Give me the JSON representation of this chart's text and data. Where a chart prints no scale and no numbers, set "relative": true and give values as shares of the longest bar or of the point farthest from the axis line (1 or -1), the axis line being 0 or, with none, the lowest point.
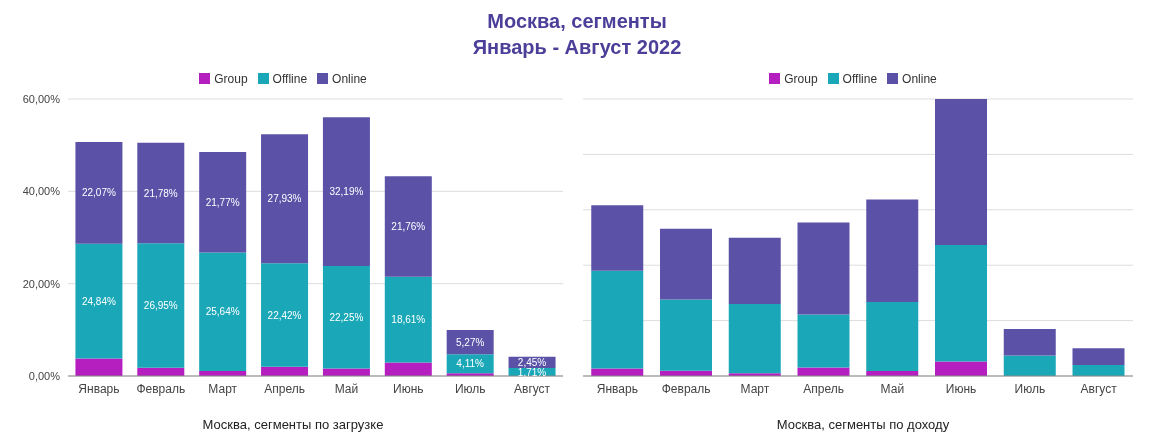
{
  "chart_data": [
    {
      "type": "bar",
      "title": "Москва, сегменты",
      "subtitle": "Январь - Август 2022",
      "xlabel": "Москва, сегменты по загрузке",
      "stacked": true,
      "legend": "top",
      "grid": "y",
      "categories": [
        "Январь",
        "Февраль",
        "Март",
        "Апрель",
        "Май",
        "Июнь",
        "Июль",
        "Август"
      ],
      "ylim": [
        0,
        60
      ],
      "yticks": [
        {
          "value": 0,
          "label": "0,00%"
        },
        {
          "value": 20,
          "label": "20,00%"
        },
        {
          "value": 40,
          "label": "40,00%"
        },
        {
          "value": 60,
          "label": "60,00%"
        }
      ],
      "series": [
        {
          "name": "Group",
          "color": "#b51fc0",
          "values": [
            3.8,
            1.8,
            1.1,
            2.0,
            1.6,
            2.9,
            0.6,
            null
          ]
        },
        {
          "name": "Offline",
          "color": "#1aa8b8",
          "values": [
            24.84,
            26.95,
            25.64,
            22.42,
            22.25,
            18.61,
            4.11,
            1.71
          ],
          "value_labels": [
            "24,84%",
            "26,95%",
            "25,64%",
            "22,42%",
            "22,25%",
            "18,61%",
            "4,11%",
            "1,71%"
          ]
        },
        {
          "name": "Online",
          "color": "#5b52a8",
          "values": [
            22.07,
            21.78,
            21.77,
            27.93,
            32.19,
            21.76,
            5.27,
            2.45
          ],
          "value_labels": [
            "22,07%",
            "21,78%",
            "21,77%",
            "27,93%",
            "32,19%",
            "21,76%",
            "5,27%",
            "2,45%"
          ]
        }
      ]
    },
    {
      "type": "bar",
      "xlabel": "Москва, сегменты по доходу",
      "stacked": true,
      "legend": "top",
      "grid": "y",
      "relative": true,
      "tick_labels": "x",
      "categories": [
        "Январь",
        "Февраль",
        "Март",
        "Апрель",
        "Май",
        "Июнь",
        "Июль",
        "Август"
      ],
      "series": [
        {
          "name": "Group",
          "color": "#b51fc0",
          "values": [
            0.027,
            0.019,
            0.01,
            0.031,
            0.018,
            0.052,
            null,
            null
          ]
        },
        {
          "name": "Offline",
          "color": "#1aa8b8",
          "values": [
            0.353,
            0.257,
            0.25,
            0.191,
            0.249,
            0.421,
            0.074,
            0.04
          ]
        },
        {
          "name": "Online",
          "color": "#5b52a8",
          "values": [
            0.236,
            0.256,
            0.239,
            0.332,
            0.37,
            0.527,
            0.096,
            0.06
          ]
        }
      ]
    }
  ]
}
